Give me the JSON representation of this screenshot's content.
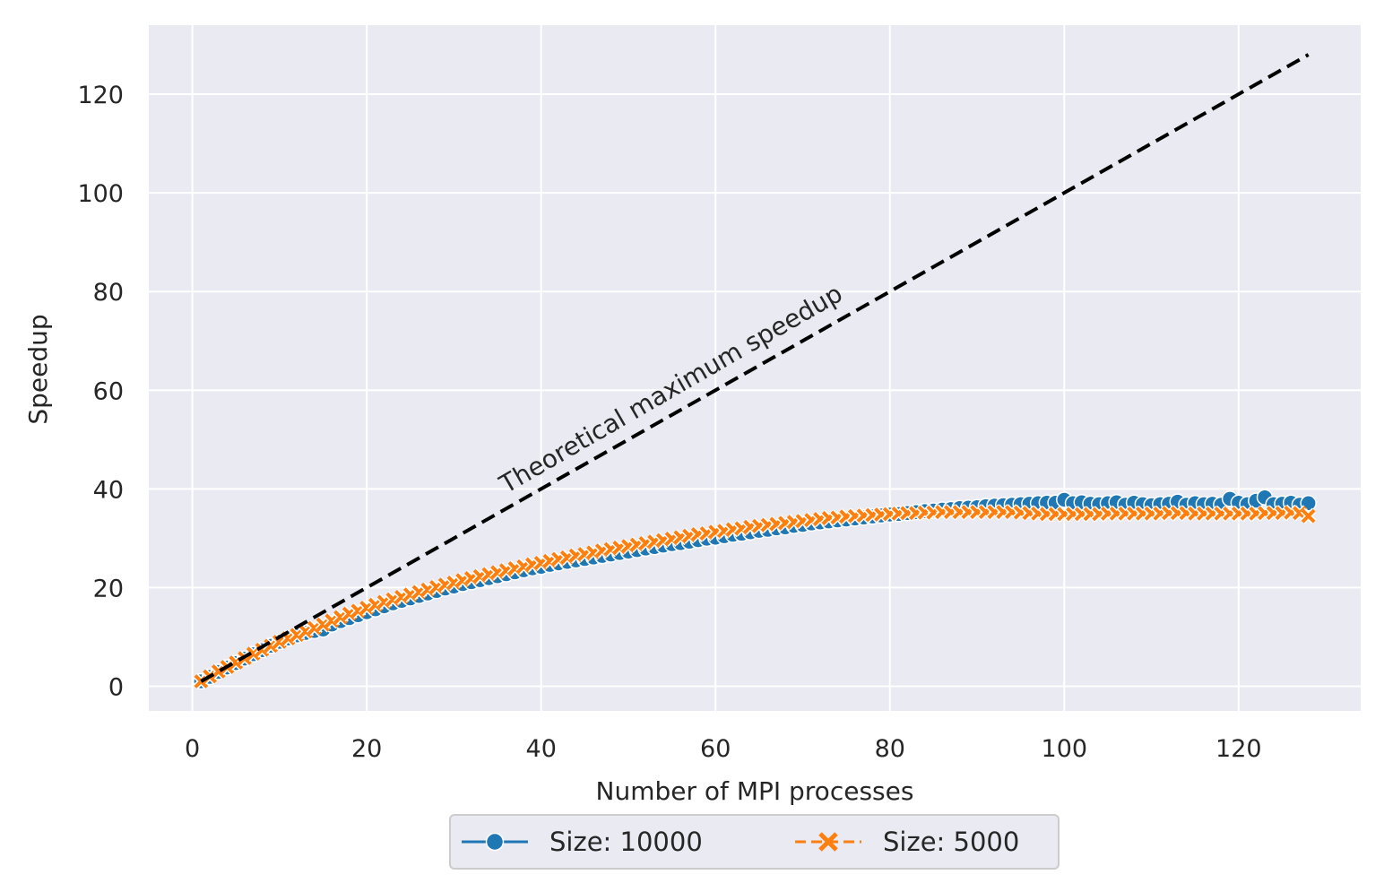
{
  "chart_data": {
    "type": "line",
    "title": "",
    "xlabel": "Number of MPI processes",
    "ylabel": "Speedup",
    "xlim": [
      -5,
      134
    ],
    "ylim": [
      -5,
      134
    ],
    "xticks": [
      0,
      20,
      40,
      60,
      80,
      100,
      120
    ],
    "yticks": [
      0,
      20,
      40,
      60,
      80,
      100,
      120
    ],
    "grid": true,
    "legend_position": "bottom-center",
    "annotation": {
      "text": "Theoretical maximum speedup",
      "x": 36,
      "y": 39,
      "rotation_deg": -30
    },
    "ideal_line": {
      "x": [
        1,
        128
      ],
      "y": [
        1,
        128
      ],
      "color": "#000000",
      "style": "dashed"
    },
    "series": [
      {
        "name": "Size: 10000",
        "color": "#1f77b4",
        "marker": "circle",
        "line_style": "solid",
        "x": [
          1,
          2,
          3,
          4,
          5,
          6,
          7,
          8,
          9,
          10,
          11,
          12,
          13,
          14,
          15,
          16,
          17,
          18,
          19,
          20,
          21,
          22,
          23,
          24,
          25,
          26,
          27,
          28,
          29,
          30,
          31,
          32,
          33,
          34,
          35,
          36,
          37,
          38,
          39,
          40,
          41,
          42,
          43,
          44,
          45,
          46,
          47,
          48,
          49,
          50,
          51,
          52,
          53,
          54,
          55,
          56,
          57,
          58,
          59,
          60,
          61,
          62,
          63,
          64,
          65,
          66,
          67,
          68,
          69,
          70,
          71,
          72,
          73,
          74,
          75,
          76,
          77,
          78,
          79,
          80,
          81,
          82,
          83,
          84,
          85,
          86,
          87,
          88,
          89,
          90,
          91,
          92,
          93,
          94,
          95,
          96,
          97,
          98,
          99,
          100,
          101,
          102,
          103,
          104,
          105,
          106,
          107,
          108,
          109,
          110,
          111,
          112,
          113,
          114,
          115,
          116,
          117,
          118,
          119,
          120,
          121,
          122,
          123,
          124,
          125,
          126,
          127,
          128
        ],
        "y": [
          1.0,
          1.9,
          2.9,
          3.8,
          4.7,
          5.6,
          6.5,
          7.3,
          8.2,
          9.0,
          9.7,
          10.3,
          10.8,
          11.2,
          11.5,
          12.5,
          13.2,
          13.8,
          14.4,
          15.0,
          15.6,
          16.2,
          16.8,
          17.3,
          17.8,
          18.3,
          18.8,
          19.3,
          19.8,
          20.2,
          20.7,
          21.1,
          21.5,
          21.9,
          22.3,
          22.7,
          23.1,
          23.5,
          23.9,
          24.2,
          24.6,
          24.9,
          25.2,
          25.5,
          25.8,
          26.1,
          26.4,
          26.7,
          27.0,
          27.3,
          27.6,
          27.9,
          28.2,
          28.5,
          28.8,
          29.0,
          29.3,
          29.6,
          29.9,
          30.1,
          30.4,
          30.7,
          30.9,
          31.2,
          31.5,
          31.7,
          32.0,
          32.2,
          32.5,
          32.7,
          33.0,
          33.2,
          33.4,
          33.6,
          33.8,
          34.0,
          34.2,
          34.4,
          34.6,
          34.8,
          34.9,
          35.1,
          35.3,
          35.5,
          35.6,
          35.8,
          35.9,
          36.1,
          36.2,
          36.3,
          36.5,
          36.6,
          36.7,
          36.8,
          36.9,
          37.0,
          37.1,
          37.2,
          37.2,
          37.8,
          37.1,
          37.3,
          37.0,
          36.9,
          37.1,
          37.3,
          36.8,
          37.2,
          36.9,
          36.7,
          36.9,
          37.0,
          37.4,
          36.8,
          37.1,
          36.9,
          37.0,
          36.8,
          38.0,
          37.2,
          36.9,
          37.6,
          38.3,
          36.9,
          37.0,
          37.2,
          36.8,
          37.1
        ]
      },
      {
        "name": "Size: 5000",
        "color": "#ff7f0e",
        "marker": "x",
        "line_style": "dashed",
        "x": [
          1,
          2,
          3,
          4,
          5,
          6,
          7,
          8,
          9,
          10,
          11,
          12,
          13,
          14,
          15,
          16,
          17,
          18,
          19,
          20,
          21,
          22,
          23,
          24,
          25,
          26,
          27,
          28,
          29,
          30,
          31,
          32,
          33,
          34,
          35,
          36,
          37,
          38,
          39,
          40,
          41,
          42,
          43,
          44,
          45,
          46,
          47,
          48,
          49,
          50,
          51,
          52,
          53,
          54,
          55,
          56,
          57,
          58,
          59,
          60,
          61,
          62,
          63,
          64,
          65,
          66,
          67,
          68,
          69,
          70,
          71,
          72,
          73,
          74,
          75,
          76,
          77,
          78,
          79,
          80,
          81,
          82,
          83,
          84,
          85,
          86,
          87,
          88,
          89,
          90,
          91,
          92,
          93,
          94,
          95,
          96,
          97,
          98,
          99,
          100,
          101,
          102,
          103,
          104,
          105,
          106,
          107,
          108,
          109,
          110,
          111,
          112,
          113,
          114,
          115,
          116,
          117,
          118,
          119,
          120,
          121,
          122,
          123,
          124,
          125,
          126,
          127,
          128
        ],
        "y": [
          1.0,
          2.0,
          3.0,
          3.9,
          4.8,
          5.7,
          6.6,
          7.4,
          8.2,
          9.0,
          9.7,
          10.4,
          11.1,
          11.8,
          12.5,
          13.3,
          14.0,
          14.7,
          15.3,
          15.9,
          16.5,
          17.1,
          17.6,
          18.1,
          18.6,
          19.1,
          19.6,
          20.1,
          20.6,
          21.0,
          21.5,
          21.9,
          22.3,
          22.7,
          23.1,
          23.5,
          23.9,
          24.3,
          24.7,
          25.0,
          25.4,
          25.8,
          26.1,
          26.5,
          26.8,
          27.1,
          27.5,
          27.8,
          28.1,
          28.4,
          28.7,
          29.0,
          29.3,
          29.6,
          29.9,
          30.2,
          30.5,
          30.8,
          31.0,
          31.3,
          31.5,
          31.8,
          32.0,
          32.3,
          32.5,
          32.7,
          32.9,
          33.1,
          33.3,
          33.5,
          33.7,
          33.9,
          34.1,
          34.2,
          34.4,
          34.5,
          34.6,
          34.7,
          34.8,
          34.9,
          35.0,
          35.1,
          35.1,
          35.2,
          35.2,
          35.3,
          35.3,
          35.3,
          35.3,
          35.3,
          35.3,
          35.3,
          35.3,
          35.3,
          35.2,
          35.1,
          35.0,
          34.9,
          34.9,
          34.9,
          34.9,
          34.9,
          34.9,
          34.9,
          35.0,
          35.0,
          35.0,
          35.0,
          35.0,
          35.0,
          35.0,
          35.1,
          35.1,
          35.1,
          35.0,
          35.0,
          35.0,
          35.0,
          35.0,
          35.0,
          35.0,
          35.0,
          35.1,
          35.1,
          35.1,
          35.2,
          35.1,
          34.5
        ]
      }
    ]
  }
}
